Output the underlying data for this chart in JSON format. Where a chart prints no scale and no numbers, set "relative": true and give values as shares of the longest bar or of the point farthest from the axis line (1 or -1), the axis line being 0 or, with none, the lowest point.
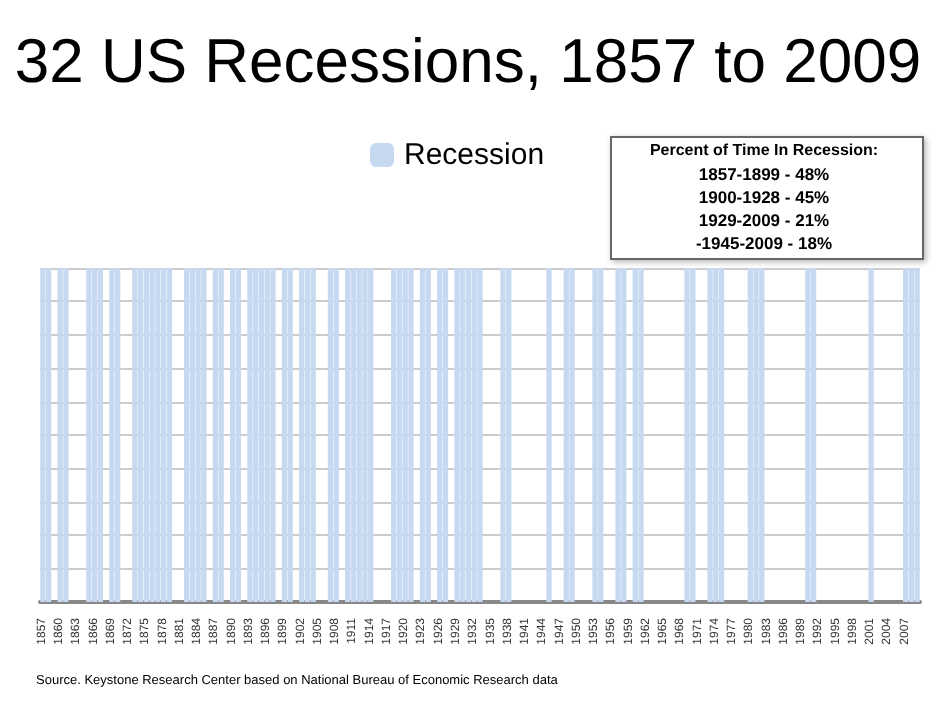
{
  "chart_data": {
    "type": "bar",
    "title": "32 US Recessions, 1857 to 2009",
    "relative": true,
    "grid": "y",
    "legend": "top",
    "tick_labels": "x",
    "categories": [
      "1857",
      null,
      null,
      "1860",
      null,
      null,
      "1863",
      null,
      null,
      "1866",
      null,
      null,
      "1869",
      null,
      null,
      "1872",
      null,
      null,
      "1875",
      null,
      null,
      "1878",
      null,
      null,
      "1881",
      null,
      null,
      "1884",
      null,
      null,
      "1887",
      null,
      null,
      "1890",
      null,
      null,
      "1893",
      null,
      null,
      "1896",
      null,
      null,
      "1899",
      null,
      null,
      "1902",
      null,
      null,
      "1905",
      null,
      null,
      "1908",
      null,
      null,
      "1911",
      null,
      null,
      "1914",
      null,
      null,
      "1917",
      null,
      null,
      "1920",
      null,
      null,
      "1923",
      null,
      null,
      "1926",
      null,
      null,
      "1929",
      null,
      null,
      "1932",
      null,
      null,
      "1935",
      null,
      null,
      "1938",
      null,
      null,
      "1941",
      null,
      null,
      "1944",
      null,
      null,
      "1947",
      null,
      null,
      "1950",
      null,
      null,
      "1953",
      null,
      null,
      "1956",
      null,
      null,
      "1959",
      null,
      null,
      "1962",
      null,
      null,
      "1965",
      null,
      null,
      "1968",
      null,
      null,
      "1971",
      null,
      null,
      "1974",
      null,
      null,
      "1977",
      null,
      null,
      "1980",
      null,
      null,
      "1983",
      null,
      null,
      "1986",
      null,
      null,
      "1989",
      null,
      null,
      "1992",
      null,
      null,
      "1995",
      null,
      null,
      "1998",
      null,
      null,
      "2001",
      null,
      null,
      "2004",
      null,
      null,
      "2007",
      null,
      null
    ],
    "series": [
      {
        "name": "Recession",
        "color": "#c6d9f1",
        "values": [
          1,
          1,
          0,
          1,
          1,
          0,
          0,
          0,
          1,
          1,
          1,
          0,
          1,
          1,
          0,
          0,
          1,
          1,
          1,
          1,
          1,
          1,
          1,
          0,
          0,
          1,
          1,
          1,
          1,
          0,
          1,
          1,
          0,
          1,
          1,
          0,
          1,
          1,
          1,
          1,
          1,
          0,
          1,
          1,
          0,
          1,
          1,
          1,
          0,
          0,
          1,
          1,
          0,
          1,
          1,
          1,
          1,
          1,
          0,
          0,
          0,
          1,
          1,
          1,
          1,
          0,
          1,
          1,
          0,
          1,
          1,
          0,
          1,
          1,
          1,
          1,
          1,
          0,
          0,
          0,
          1,
          1,
          0,
          0,
          0,
          0,
          0,
          0,
          1,
          0,
          0,
          1,
          1,
          0,
          0,
          0,
          1,
          1,
          0,
          0,
          1,
          1,
          0,
          1,
          1,
          0,
          0,
          0,
          0,
          0,
          0,
          0,
          1,
          1,
          0,
          0,
          1,
          1,
          1,
          0,
          0,
          0,
          0,
          1,
          1,
          1,
          0,
          0,
          0,
          0,
          0,
          0,
          0,
          1,
          1,
          0,
          0,
          0,
          0,
          0,
          0,
          0,
          0,
          0,
          1,
          0,
          0,
          0,
          0,
          0,
          1,
          1,
          1
        ]
      }
    ],
    "annotations": [
      "Percent of Time In Recession:",
      "1857-1899 - 48%",
      "1900-1928 - 45%",
      "1929-2009 - 21%",
      "-1945-2009 - 18%",
      "Source. Keystone Research Center based on National Bureau of Economic Research data"
    ]
  }
}
